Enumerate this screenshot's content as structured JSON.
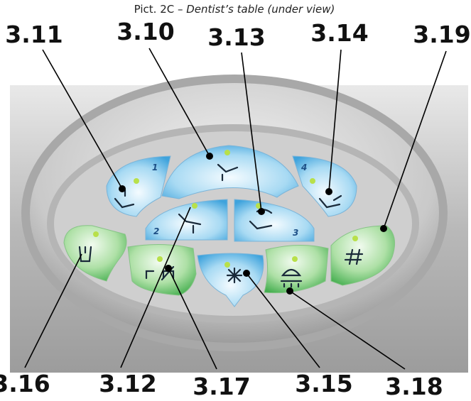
{
  "caption": {
    "prefix": "Pict. 2C – ",
    "title": "Dentist’s table (under view)"
  },
  "callouts": {
    "top": [
      "3.11",
      "3.10",
      "3.13",
      "3.14",
      "3.19"
    ],
    "bottom": [
      "3.16",
      "3.12",
      "3.17",
      "3.15",
      "3.18"
    ]
  },
  "button_numbers": [
    "1",
    "2",
    "3",
    "4"
  ]
}
